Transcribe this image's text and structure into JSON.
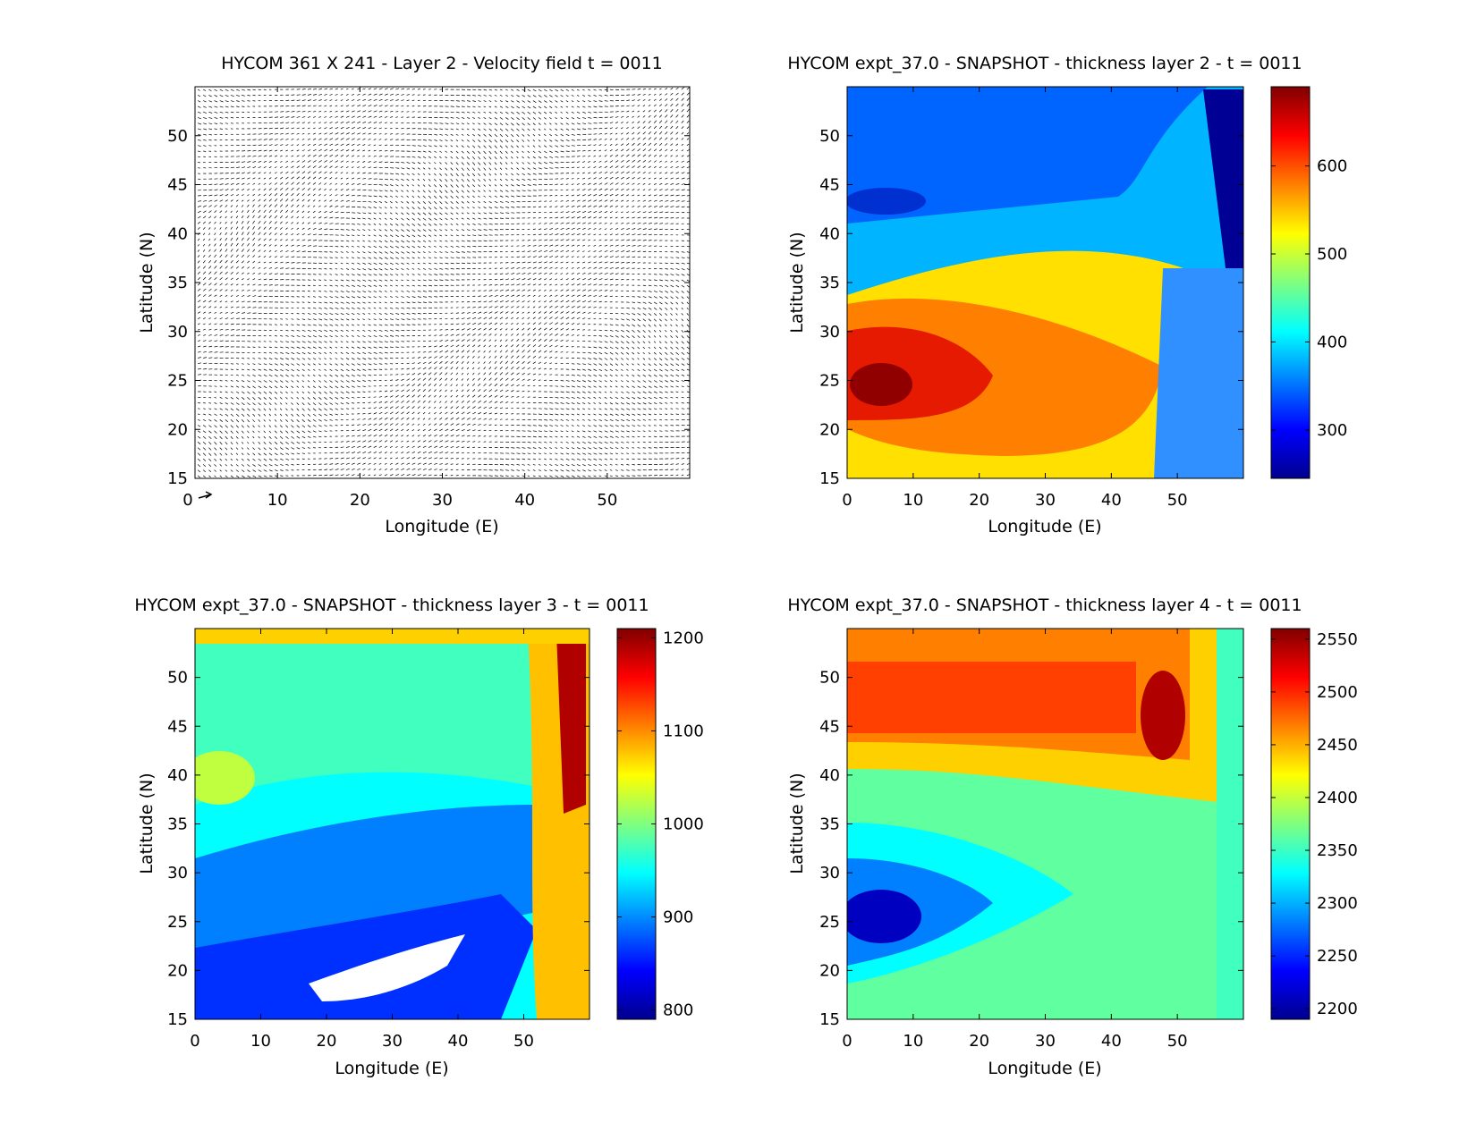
{
  "chart_data": [
    {
      "type": "quiver",
      "title": "HYCOM 361 X 241 - Layer 2 - Velocity field  t = 0011",
      "xlabel": "Longitude (E)",
      "ylabel": "Latitude (N)",
      "xlim": [
        0,
        60
      ],
      "ylim": [
        15,
        55
      ],
      "xticks": [
        0,
        10,
        20,
        30,
        40,
        50
      ],
      "yticks": [
        15,
        20,
        25,
        30,
        35,
        40,
        45,
        50
      ],
      "grid": false,
      "reference_arrow_label": "0"
    },
    {
      "type": "contourf",
      "title": "HYCOM expt_37.0 - SNAPSHOT - thickness layer 2 - t = 0011",
      "xlabel": "Longitude (E)",
      "ylabel": "Latitude (N)",
      "xlim": [
        0,
        60
      ],
      "ylim": [
        15,
        55
      ],
      "xticks": [
        0,
        10,
        20,
        30,
        40,
        50
      ],
      "yticks": [
        15,
        20,
        25,
        30,
        35,
        40,
        45,
        50
      ],
      "colorbar": {
        "range": [
          245,
          690
        ],
        "ticks": [
          300,
          400,
          500,
          600
        ]
      },
      "features": [
        {
          "label": "maximum",
          "value": 690,
          "lon": 4,
          "lat": 24
        },
        {
          "label": "minimum",
          "value": 250,
          "lon": 58,
          "lat": 45
        },
        {
          "label": "local low",
          "value": 280,
          "lon": 5,
          "lat": 45
        }
      ]
    },
    {
      "type": "contourf",
      "title": "HYCOM expt_37.0 - SNAPSHOT - thickness layer 3 - t = 0011",
      "xlabel": "Longitude (E)",
      "ylabel": "Latitude (N)",
      "xlim": [
        0,
        60
      ],
      "ylim": [
        15,
        55
      ],
      "xticks": [
        0,
        10,
        20,
        30,
        40,
        50
      ],
      "yticks": [
        15,
        20,
        25,
        30,
        35,
        40,
        45,
        50
      ],
      "colorbar": {
        "range": [
          790,
          1210
        ],
        "ticks": [
          800,
          900,
          1000,
          1100,
          1200
        ]
      },
      "features": [
        {
          "label": "maximum",
          "value": 1200,
          "lon": 58,
          "lat": 45
        },
        {
          "label": "minimum",
          "value": 800,
          "lon": 25,
          "lat": 19
        },
        {
          "label": "local high",
          "value": 1030,
          "lon": 5,
          "lat": 38
        }
      ]
    },
    {
      "type": "contourf",
      "title": "HYCOM expt_37.0 - SNAPSHOT - thickness layer 4 - t = 0011",
      "xlabel": "Longitude (E)",
      "ylabel": "Latitude (N)",
      "xlim": [
        0,
        60
      ],
      "ylim": [
        15,
        55
      ],
      "xticks": [
        0,
        10,
        20,
        30,
        40,
        50
      ],
      "yticks": [
        15,
        20,
        25,
        30,
        35,
        40,
        45,
        50
      ],
      "colorbar": {
        "range": [
          2190,
          2560
        ],
        "ticks": [
          2200,
          2250,
          2300,
          2350,
          2400,
          2450,
          2500,
          2550
        ]
      },
      "features": [
        {
          "label": "maximum",
          "value": 2550,
          "lon": 47,
          "lat": 47
        },
        {
          "label": "minimum",
          "value": 2200,
          "lon": 3,
          "lat": 24
        }
      ]
    }
  ]
}
